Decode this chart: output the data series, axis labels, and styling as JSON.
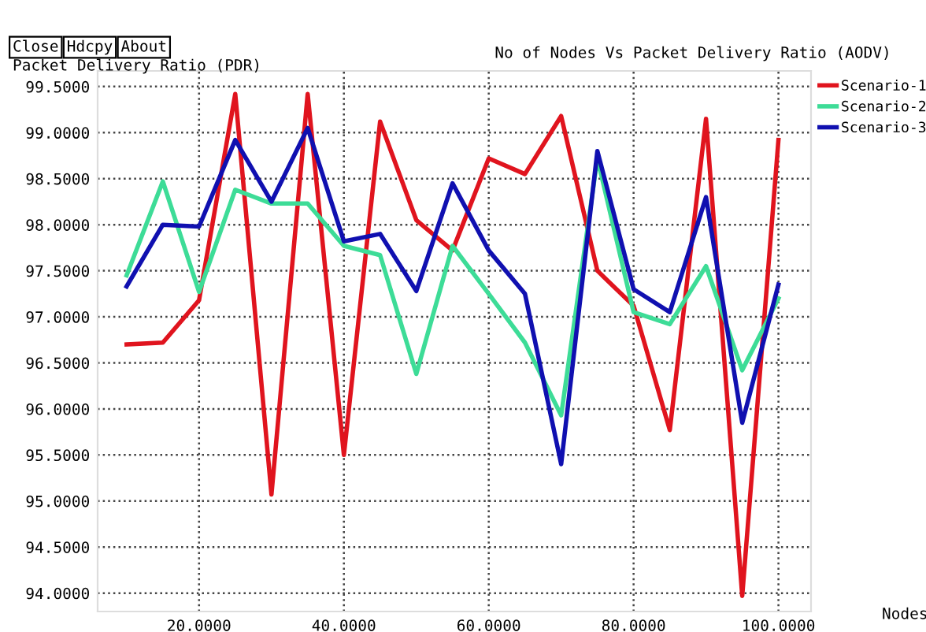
{
  "chart_data": {
    "type": "line",
    "title": "No of Nodes Vs Packet Delivery Ratio (AODV)",
    "ylabel": "Packet Delivery Ratio (PDR)",
    "xlabel": "Nodes",
    "annotations": [
      "Close",
      "Hdcpy",
      "About"
    ],
    "x": [
      10,
      15,
      20,
      25,
      30,
      35,
      40,
      45,
      50,
      55,
      60,
      65,
      70,
      75,
      80,
      85,
      90,
      95,
      100
    ],
    "series": [
      {
        "name": "Scenario-1",
        "color": "#e0141e",
        "values": [
          96.7,
          96.72,
          97.18,
          99.42,
          95.07,
          99.42,
          95.5,
          99.12,
          98.05,
          97.72,
          98.72,
          98.55,
          99.18,
          97.5,
          97.12,
          95.77,
          99.15,
          93.97,
          98.92
        ]
      },
      {
        "name": "Scenario-2",
        "color": "#3ddc97",
        "values": [
          97.45,
          98.47,
          97.27,
          98.38,
          98.23,
          98.23,
          97.77,
          97.67,
          96.38,
          97.77,
          97.25,
          96.72,
          95.93,
          98.72,
          97.05,
          96.92,
          97.55,
          96.42,
          97.2
        ]
      },
      {
        "name": "Scenario-3",
        "color": "#1010b0",
        "values": [
          97.33,
          98.0,
          97.98,
          98.92,
          98.25,
          99.05,
          97.82,
          97.9,
          97.28,
          98.45,
          97.72,
          97.25,
          95.4,
          98.8,
          97.3,
          97.05,
          98.3,
          95.85,
          97.35
        ]
      }
    ],
    "xlim": [
      6,
      104.5
    ],
    "ylim": [
      93.8,
      99.67
    ],
    "xticks": [
      {
        "value": 20,
        "label": "20.0000"
      },
      {
        "value": 40,
        "label": "40.0000"
      },
      {
        "value": 60,
        "label": "60.0000"
      },
      {
        "value": 80,
        "label": "80.0000"
      },
      {
        "value": 100,
        "label": "100.0000"
      }
    ],
    "yticks": [
      {
        "value": 94,
        "label": "94.0000"
      },
      {
        "value": 94.5,
        "label": "94.5000"
      },
      {
        "value": 95,
        "label": "95.0000"
      },
      {
        "value": 95.5,
        "label": "95.5000"
      },
      {
        "value": 96,
        "label": "96.0000"
      },
      {
        "value": 96.5,
        "label": "96.5000"
      },
      {
        "value": 97,
        "label": "97.0000"
      },
      {
        "value": 97.5,
        "label": "97.5000"
      },
      {
        "value": 98,
        "label": "98.0000"
      },
      {
        "value": 98.5,
        "label": "98.5000"
      },
      {
        "value": 99,
        "label": "99.0000"
      },
      {
        "value": 99.5,
        "label": "99.5000"
      }
    ],
    "grid": true,
    "legend": "top right",
    "marker": "none",
    "line_style": "solid"
  }
}
